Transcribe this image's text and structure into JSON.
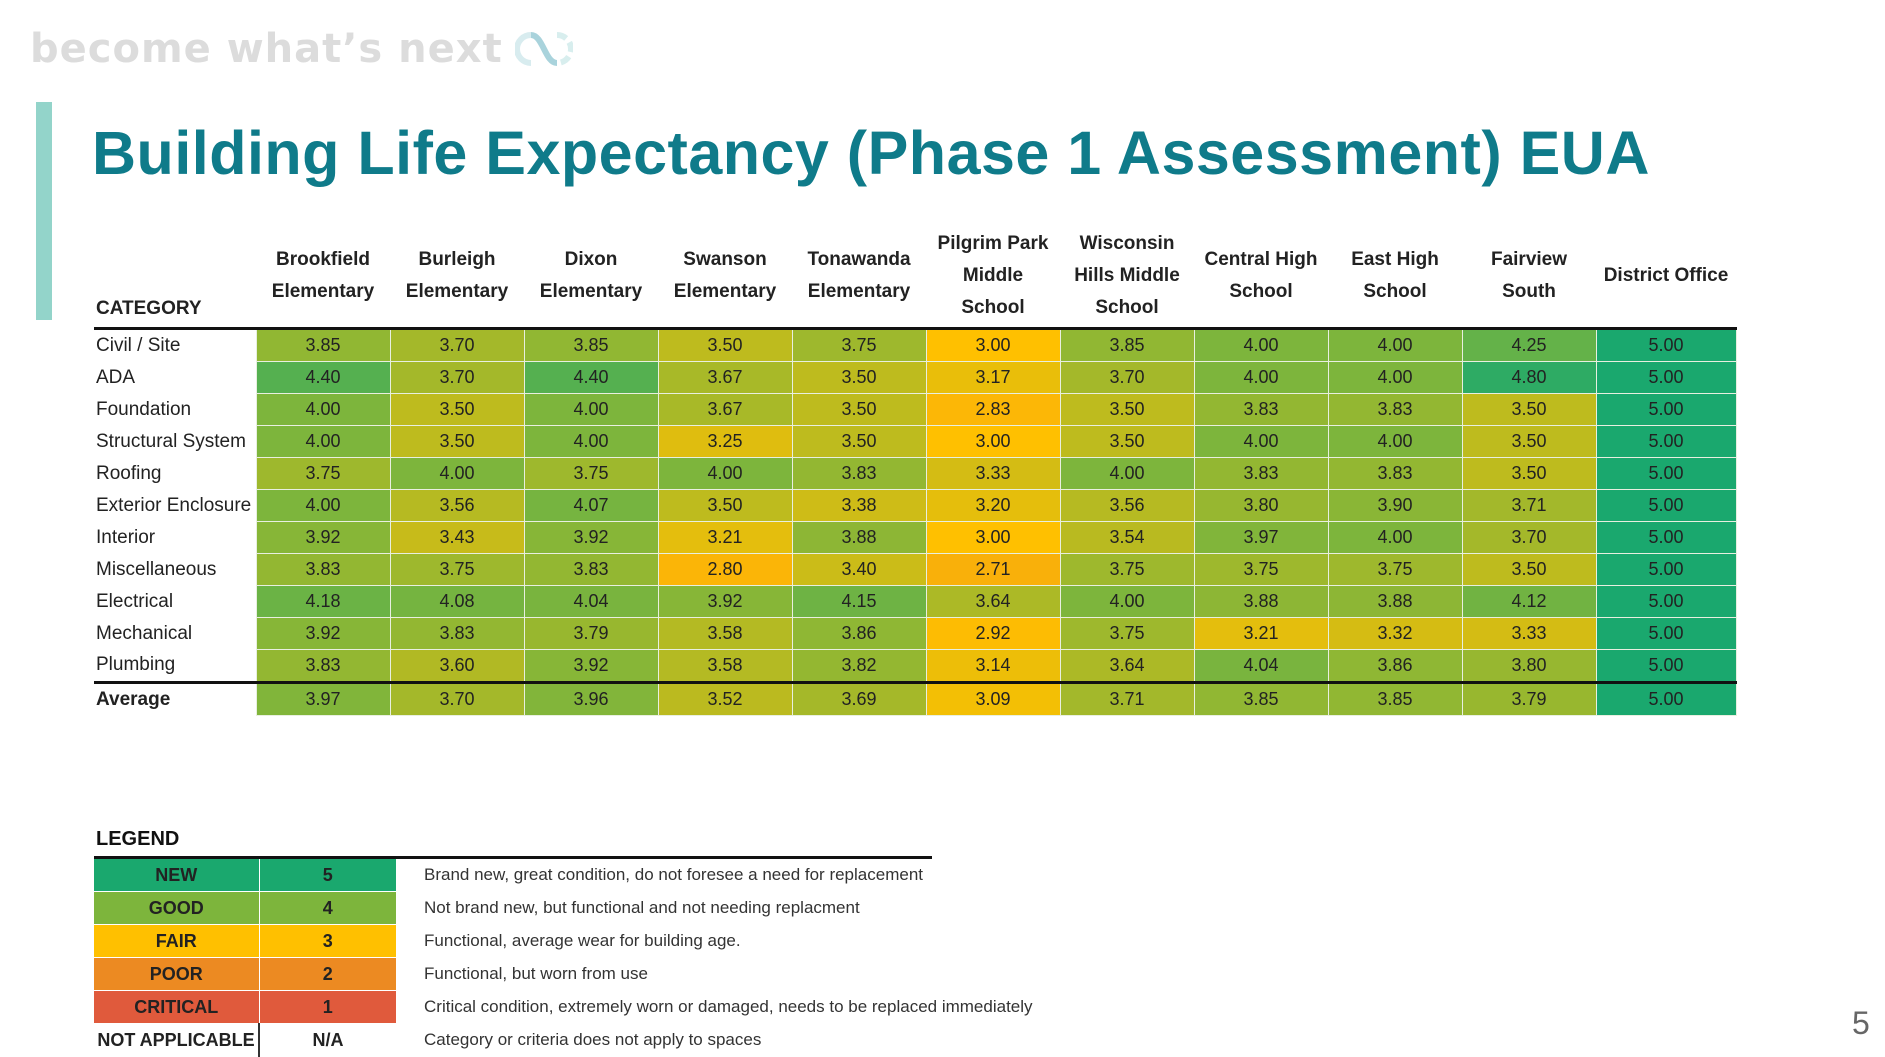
{
  "brand": {
    "tagline": "become what’s next",
    "logo_icon": "infinity-loop-icon"
  },
  "title": "Building Life Expectancy (Phase 1 Assessment) EUA",
  "table": {
    "category_header": "CATEGORY",
    "columns": [
      [
        "Brookfield",
        "Elementary"
      ],
      [
        "Burleigh",
        "Elementary"
      ],
      [
        "Dixon",
        "Elementary"
      ],
      [
        "Swanson",
        "Elementary"
      ],
      [
        "Tonawanda",
        "Elementary"
      ],
      [
        "Pilgrim Park",
        "Middle",
        "School"
      ],
      [
        "Wisconsin",
        "Hills Middle",
        "School"
      ],
      [
        "Central High",
        "School"
      ],
      [
        "East High",
        "School"
      ],
      [
        "Fairview",
        "South"
      ],
      [
        "District Office"
      ]
    ],
    "rows": [
      {
        "category": "Civil / Site",
        "values": [
          "3.85",
          "3.70",
          "3.85",
          "3.50",
          "3.75",
          "3.00",
          "3.85",
          "4.00",
          "4.00",
          "4.25",
          "5.00"
        ]
      },
      {
        "category": "ADA",
        "values": [
          "4.40",
          "3.70",
          "4.40",
          "3.67",
          "3.50",
          "3.17",
          "3.70",
          "4.00",
          "4.00",
          "4.80",
          "5.00"
        ]
      },
      {
        "category": "Foundation",
        "values": [
          "4.00",
          "3.50",
          "4.00",
          "3.67",
          "3.50",
          "2.83",
          "3.50",
          "3.83",
          "3.83",
          "3.50",
          "5.00"
        ]
      },
      {
        "category": "Structural System",
        "values": [
          "4.00",
          "3.50",
          "4.00",
          "3.25",
          "3.50",
          "3.00",
          "3.50",
          "4.00",
          "4.00",
          "3.50",
          "5.00"
        ]
      },
      {
        "category": "Roofing",
        "values": [
          "3.75",
          "4.00",
          "3.75",
          "4.00",
          "3.83",
          "3.33",
          "4.00",
          "3.83",
          "3.83",
          "3.50",
          "5.00"
        ]
      },
      {
        "category": "Exterior Enclosure",
        "values": [
          "4.00",
          "3.56",
          "4.07",
          "3.50",
          "3.38",
          "3.20",
          "3.56",
          "3.80",
          "3.90",
          "3.71",
          "5.00"
        ]
      },
      {
        "category": "Interior",
        "values": [
          "3.92",
          "3.43",
          "3.92",
          "3.21",
          "3.88",
          "3.00",
          "3.54",
          "3.97",
          "4.00",
          "3.70",
          "5.00"
        ]
      },
      {
        "category": "Miscellaneous",
        "values": [
          "3.83",
          "3.75",
          "3.83",
          "2.80",
          "3.40",
          "2.71",
          "3.75",
          "3.75",
          "3.75",
          "3.50",
          "5.00"
        ]
      },
      {
        "category": "Electrical",
        "values": [
          "4.18",
          "4.08",
          "4.04",
          "3.92",
          "4.15",
          "3.64",
          "4.00",
          "3.88",
          "3.88",
          "4.12",
          "5.00"
        ]
      },
      {
        "category": "Mechanical",
        "values": [
          "3.92",
          "3.83",
          "3.79",
          "3.58",
          "3.86",
          "2.92",
          "3.75",
          "3.21",
          "3.32",
          "3.33",
          "5.00"
        ]
      },
      {
        "category": "Plumbing",
        "values": [
          "3.83",
          "3.60",
          "3.92",
          "3.58",
          "3.82",
          "3.14",
          "3.64",
          "4.04",
          "3.86",
          "3.80",
          "5.00"
        ]
      }
    ],
    "average": {
      "category": "Average",
      "values": [
        "3.97",
        "3.70",
        "3.96",
        "3.52",
        "3.69",
        "3.09",
        "3.71",
        "3.85",
        "3.85",
        "3.79",
        "5.00"
      ]
    }
  },
  "legend": {
    "title": "LEGEND",
    "items": [
      {
        "name": "NEW",
        "score": "5",
        "description": "Brand new, great condition, do not foresee a need for replacement",
        "color": "#1aa86e"
      },
      {
        "name": "GOOD",
        "score": "4",
        "description": "Not brand new, but functional and not needing replacment",
        "color": "#7db53c"
      },
      {
        "name": "FAIR",
        "score": "3",
        "description": "Functional, average wear for building age.",
        "color": "#ffc000"
      },
      {
        "name": "POOR",
        "score": "2",
        "description": "Functional, but worn from use",
        "color": "#ec8a22"
      },
      {
        "name": "CRITICAL",
        "score": "1",
        "description": "Critical condition, extremely worn or damaged, needs to be replaced immediately",
        "color": "#e05a3c"
      },
      {
        "name": "NOT APPLICABLE",
        "score": "N/A",
        "description": "Category or criteria does not apply to spaces",
        "color": "#ffffff"
      }
    ]
  },
  "page_number": "5"
}
